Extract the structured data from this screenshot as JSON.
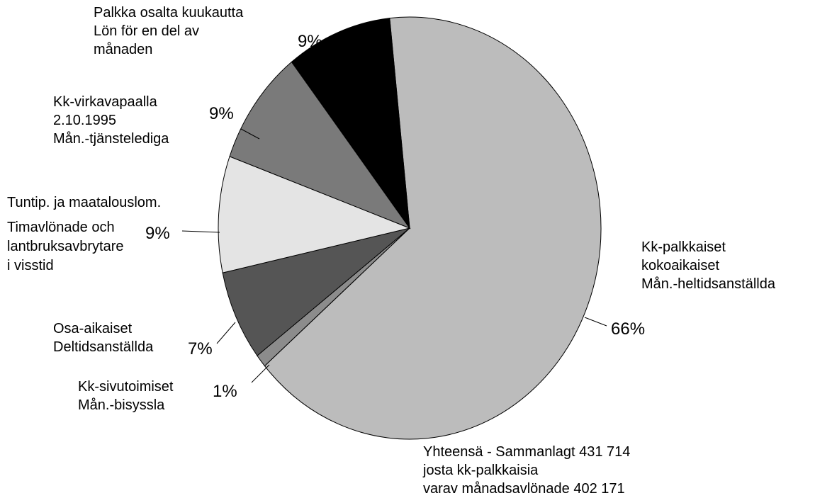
{
  "chart_data": {
    "type": "pie",
    "categories": [
      [
        "Kk-palkkaiset",
        "kokoaikaiset",
        "Mån.-heltidsanställda"
      ],
      [
        "Kk-sivutoimiset",
        "Mån.-bisyssla"
      ],
      [
        "Osa-aikaiset",
        "Deltidsanställda"
      ],
      [
        "Tuntip. ja maatalouslom.",
        "Timavlönade och",
        "lantbruksavbrytare",
        "i visstid"
      ],
      [
        "Kk-virkavapaalla",
        "2.10.1995",
        "Mån.-tjänstelediga"
      ],
      [
        "Palkka osalta kuukautta",
        "Lön för en del av",
        "månaden"
      ]
    ],
    "values": [
      66,
      1,
      7,
      9,
      9,
      9
    ],
    "value_labels": [
      "66%",
      "1%",
      "7%",
      "9%",
      "9%",
      "9%"
    ],
    "colors": [
      "#bcbcbc",
      "#8c8c8c",
      "#555555",
      "#e4e4e4",
      "#7a7a7a",
      "#000000"
    ],
    "note": [
      "Yhteensä - Sammanlagt 431 714",
      "josta kk-palkkaisia",
      "varav månadsavlönade 402 171"
    ]
  }
}
